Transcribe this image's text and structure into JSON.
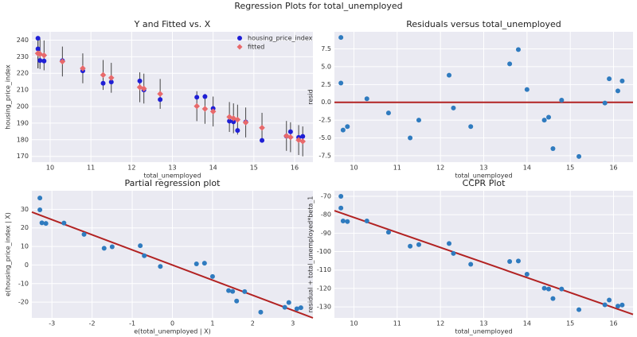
{
  "title": "Regression Plots for total_unemployed",
  "chart_data": [
    {
      "type": "scatter",
      "title": "Y and Fitted vs. X",
      "xlabel": "total_unemployed",
      "ylabel": "housing_price_index",
      "x": [
        9.7,
        9.7,
        9.75,
        9.85,
        10.3,
        10.8,
        11.3,
        11.5,
        12.2,
        12.3,
        12.7,
        13.6,
        13.8,
        14.0,
        14.4,
        14.5,
        14.6,
        14.8,
        15.2,
        15.8,
        15.9,
        16.1,
        16.2
      ],
      "series": [
        {
          "name": "housing_price_index",
          "color": "#1f1fd6",
          "marker": "circle",
          "values": [
            241.1,
            234.7,
            227.7,
            227.4,
            227.6,
            221.5,
            214.0,
            214.8,
            215.4,
            210.0,
            204.2,
            205.6,
            206.0,
            198.8,
            191.2,
            190.8,
            185.6,
            190.7,
            179.6,
            182.2,
            184.8,
            181.4,
            182.0
          ]
        },
        {
          "name": "fitted",
          "color": "#e8696b",
          "marker": "diamond",
          "values": [
            232.0,
            232.0,
            231.6,
            230.8,
            227.1,
            223.0,
            219.0,
            217.3,
            211.6,
            210.8,
            207.6,
            200.2,
            198.6,
            197.0,
            193.7,
            192.9,
            192.1,
            190.4,
            187.2,
            182.3,
            181.5,
            179.8,
            179.0
          ],
          "errors": [
            9,
            9,
            9,
            9,
            9,
            9,
            9,
            9,
            9,
            9,
            9,
            9,
            9,
            9,
            9,
            9,
            9,
            9,
            9,
            9,
            9,
            9,
            9
          ]
        }
      ],
      "xlim": [
        9.55,
        16.45
      ],
      "ylim": [
        166.5,
        245
      ],
      "xticks": [
        10,
        11,
        12,
        13,
        14,
        15,
        16
      ],
      "yticks": [
        170,
        180,
        190,
        200,
        210,
        220,
        230,
        240
      ],
      "grid": true,
      "legend": "upper right"
    },
    {
      "type": "scatter",
      "title": "Residuals versus total_unemployed",
      "xlabel": "total_unemployed",
      "ylabel": "resid",
      "x": [
        9.7,
        9.7,
        9.75,
        9.85,
        10.3,
        10.8,
        11.3,
        11.5,
        12.2,
        12.3,
        12.7,
        13.6,
        13.8,
        14.0,
        14.4,
        14.5,
        14.6,
        14.8,
        15.2,
        15.8,
        15.9,
        16.1,
        16.2
      ],
      "series": [
        {
          "color": "#2f7bbf",
          "marker": "circle",
          "values": [
            9.1,
            2.7,
            -3.9,
            -3.4,
            0.5,
            -1.5,
            -5.0,
            -2.5,
            3.8,
            -0.8,
            -3.4,
            5.4,
            7.4,
            1.8,
            -2.5,
            -2.1,
            -6.5,
            0.3,
            -7.6,
            -0.1,
            3.3,
            1.6,
            3.0
          ]
        }
      ],
      "hline": 0,
      "line_color": "#b22222",
      "xlim": [
        9.55,
        16.45
      ],
      "ylim": [
        -8.4,
        9.9
      ],
      "xticks": [
        10,
        11,
        12,
        13,
        14,
        15,
        16
      ],
      "yticks": [
        -7.5,
        {
          "value": -5,
          "label": "-5.0"
        },
        -2.5,
        {
          "value": 0,
          "label": "0.0"
        },
        2.5,
        {
          "value": 5,
          "label": "5.0"
        },
        7.5
      ],
      "grid": true
    },
    {
      "type": "scatter",
      "title": "Partial regression plot",
      "xlabel": "e(total_unemployed | X)",
      "ylabel": "e(housing_price_index | X)",
      "x": [
        -3.3,
        -3.3,
        -3.25,
        -3.15,
        -2.7,
        -2.2,
        -1.7,
        -1.5,
        -0.8,
        -0.7,
        -0.3,
        0.6,
        0.8,
        1.0,
        1.4,
        1.5,
        1.6,
        1.8,
        2.2,
        2.8,
        2.9,
        3.1,
        3.2
      ],
      "series": [
        {
          "color": "#2f7bbf",
          "marker": "circle",
          "values": [
            36.1,
            29.7,
            22.7,
            22.4,
            22.6,
            16.5,
            9.0,
            9.8,
            10.4,
            5.0,
            -0.8,
            0.6,
            1.0,
            -6.2,
            -13.8,
            -14.2,
            -19.4,
            -14.3,
            -25.4,
            -22.8,
            -20.2,
            -23.6,
            -23.0
          ]
        }
      ],
      "line": {
        "x": [
          -3.5,
          3.5
        ],
        "y": [
          28.5,
          -28.5
        ]
      },
      "line_color": "#b22222",
      "xlim": [
        -3.5,
        3.5
      ],
      "ylim": [
        -28.5,
        40
      ],
      "xticks": [
        -3,
        -2,
        -1,
        0,
        1,
        2,
        3
      ],
      "yticks": [
        -20,
        -10,
        0,
        10,
        20,
        30
      ],
      "grid": true
    },
    {
      "type": "scatter",
      "title": "CCPR Plot",
      "xlabel": "total_unemployed",
      "ylabel": "residual + total_unemployed*beta_1",
      "x": [
        9.7,
        9.7,
        9.75,
        9.85,
        10.3,
        10.8,
        11.3,
        11.5,
        12.2,
        12.3,
        12.7,
        13.6,
        13.8,
        14.0,
        14.4,
        14.5,
        14.6,
        14.8,
        15.2,
        15.8,
        15.9,
        16.1,
        16.2
      ],
      "series": [
        {
          "color": "#2f7bbf",
          "marker": "circle",
          "values": [
            -70.0,
            -76.4,
            -83.4,
            -83.7,
            -83.4,
            -89.5,
            -97.1,
            -96.2,
            -95.6,
            -101.0,
            -106.9,
            -105.4,
            -105.1,
            -112.3,
            -119.9,
            -120.3,
            -125.5,
            -120.3,
            -131.5,
            -128.9,
            -126.3,
            -129.6,
            -129.0
          ]
        }
      ],
      "line": {
        "x": [
          9.55,
          16.45
        ],
        "y": [
          -77.8,
          -134.1
        ]
      },
      "line_color": "#b22222",
      "xlim": [
        9.55,
        16.45
      ],
      "ylim": [
        -136,
        -67
      ],
      "xticks": [
        10,
        11,
        12,
        13,
        14,
        15,
        16
      ],
      "yticks": [
        -130,
        -120,
        -110,
        -100,
        -90,
        -80,
        -70
      ],
      "grid": true
    }
  ]
}
